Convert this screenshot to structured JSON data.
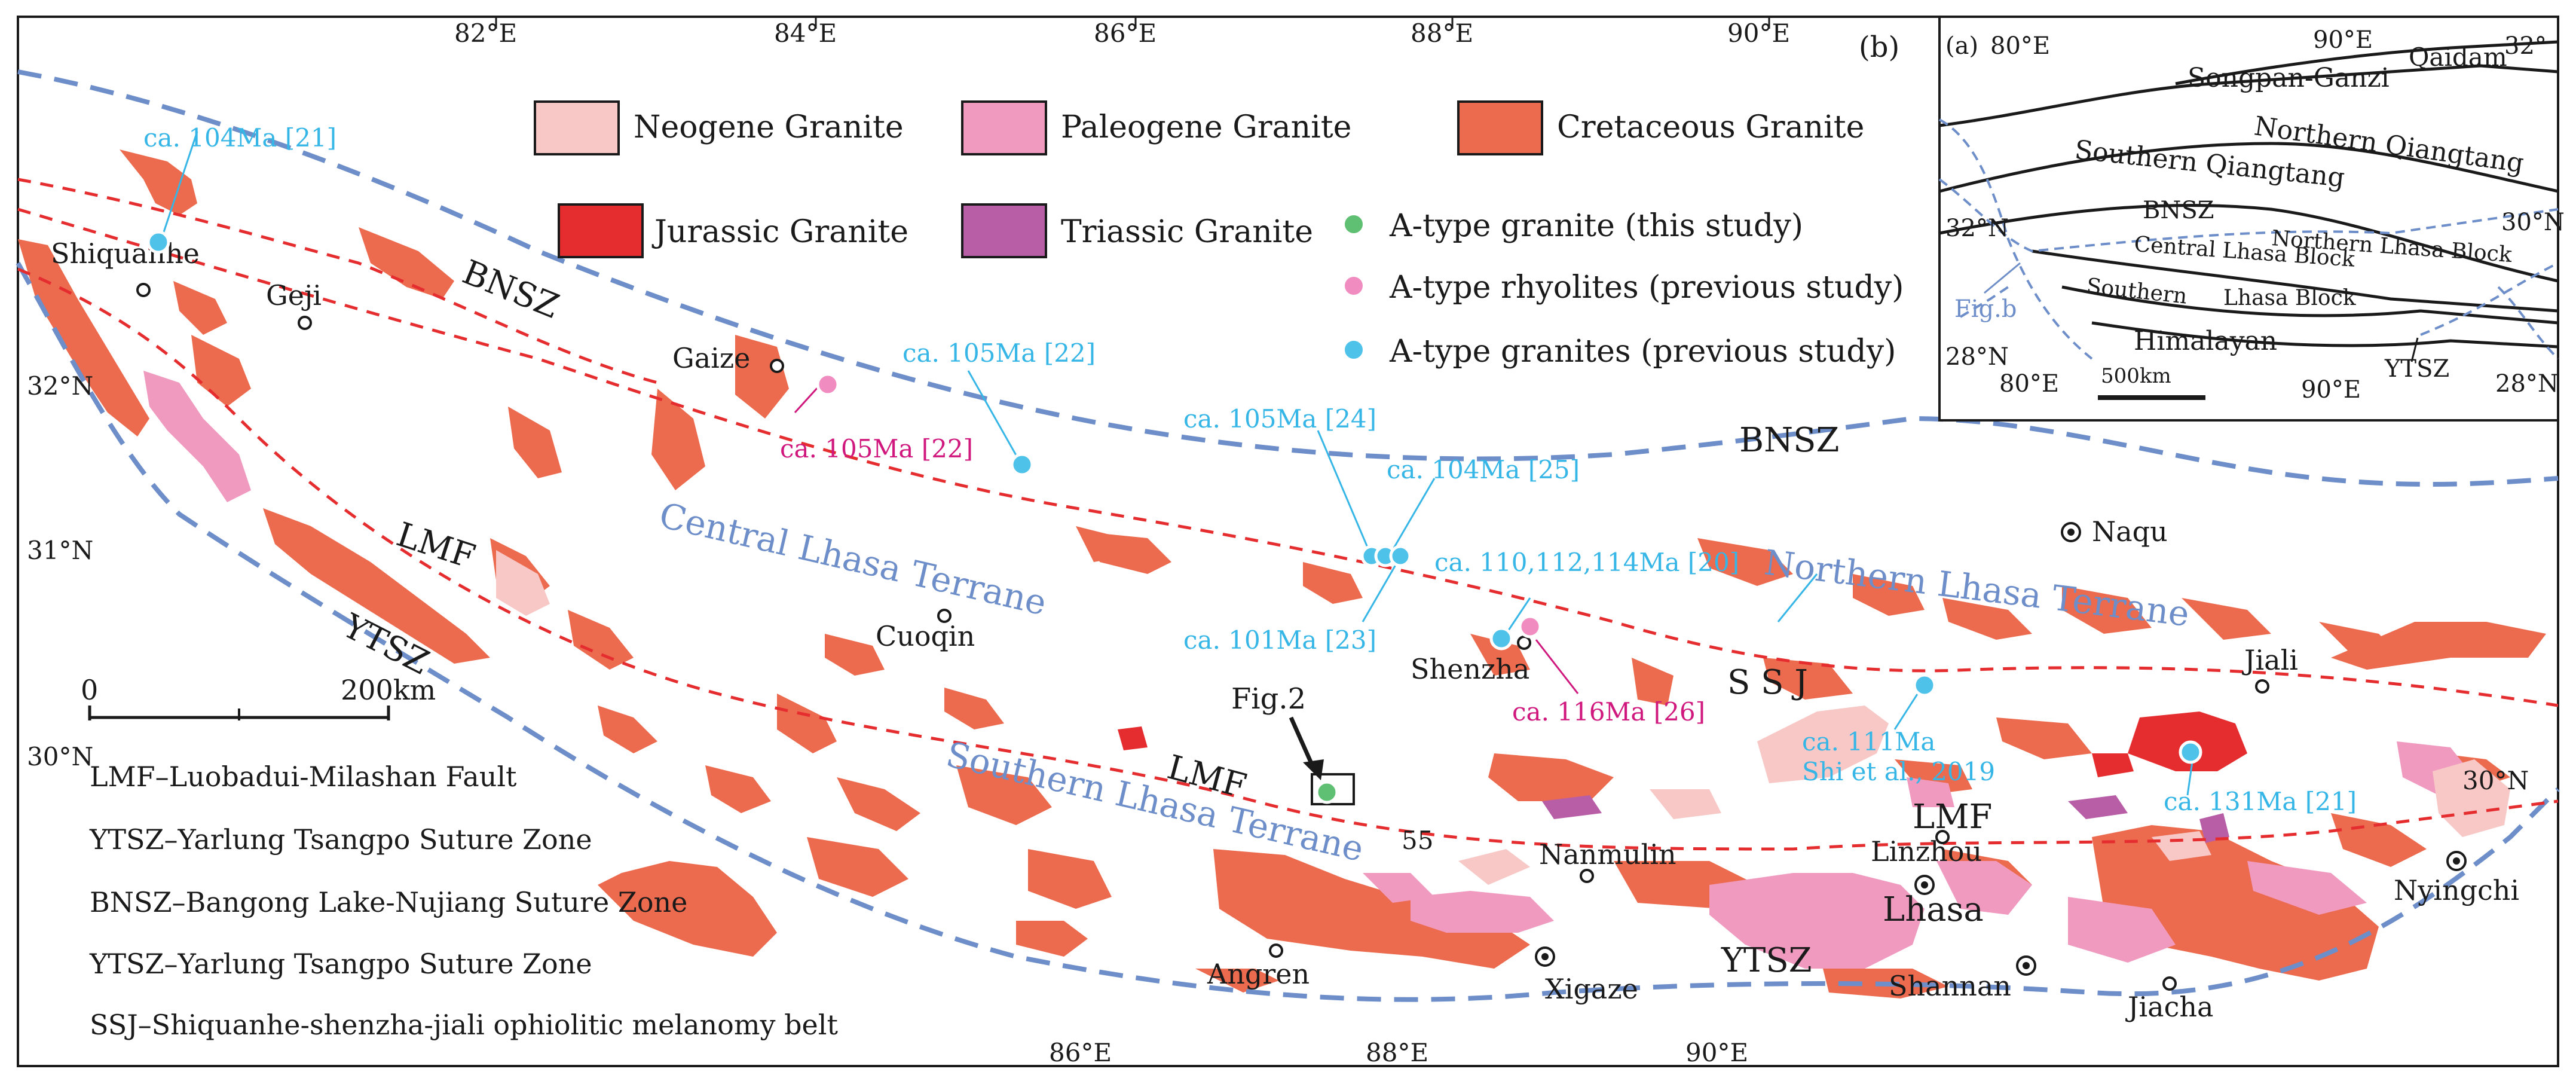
{
  "panel_labels": {
    "main": "(b)",
    "inset": "(a)"
  },
  "lat_lon_ticks": {
    "top_lon": [
      "82°E",
      "84°E",
      "86°E",
      "88°E",
      "90°E"
    ],
    "bottom_lon": [
      "86°E",
      "88°E",
      "90°E"
    ],
    "left_lat": [
      "32°N",
      "31°N",
      "30°N"
    ],
    "right_lat": [
      "30°N"
    ]
  },
  "legend": {
    "neogene": "Neogene Granite",
    "paleogene": "Paleogene Granite",
    "cretaceous": "Cretaceous Granite",
    "jurassic": "Jurassic Granite",
    "triassic": "Triassic Granite",
    "a_type_granite_this": "A-type granite (this study)",
    "a_type_rhyolite_prev": "A-type rhyolites (previous study)",
    "a_type_granite_prev": "A-type granites (previous study)"
  },
  "colors": {
    "neogene": "#f8c8c6",
    "paleogene": "#f09ac0",
    "cretaceous": "#ec6a4e",
    "jurassic": "#e52d2f",
    "triassic": "#b85ea7",
    "suture_blue": "#6d8ec9",
    "fault_red": "#e52d2f",
    "marker_green": "#5fbf72",
    "marker_pink": "#f08cc0",
    "marker_blue": "#4fc2ea",
    "age_blue": "#35b6e6",
    "age_magenta": "#d0177d"
  },
  "places": {
    "shiquanhe": "Shiquanhe",
    "geji": "Geji",
    "gaize": "Gaize",
    "cuoqin": "Cuoqin",
    "shenzha": "Shenzha",
    "naqu": "Naqu",
    "jiali": "Jiali",
    "nanmulin": "Nanmulin",
    "linzhou": "Linzhou",
    "lhasa": "Lhasa",
    "nyingchi": "Nyingchi",
    "angren": "Angren",
    "xigaze": "Xigaze",
    "shannan": "Shannan",
    "jiacha": "Jiacha"
  },
  "structures": {
    "bnsz_1": "BNSZ",
    "bnsz_2": "BNSZ",
    "lmf_1": "LMF",
    "lmf_2": "LMF",
    "lmf_3": "LMF",
    "ytsz_1": "YTSZ",
    "ytsz_2": "YTSZ",
    "ssj": "S S J",
    "num_55": "55",
    "fig2": "Fig.2"
  },
  "terranes": {
    "central": "Central Lhasa Terrane",
    "northern": "Northern Lhasa Terrane",
    "southern": "Southern Lhasa Terrane"
  },
  "ages": {
    "a104_21": "ca. 104Ma [21]",
    "a105_22_blue": "ca. 105Ma [22]",
    "a105_22_mag": "ca. 105Ma [22]",
    "a105_24": "ca. 105Ma [24]",
    "a104_25": "ca. 104Ma [25]",
    "a101_23": "ca. 101Ma [23]",
    "a110_20": "ca. 110,112,114Ma [20]",
    "a116_26": "ca. 116Ma [26]",
    "a111_line1": "ca. 111Ma",
    "a111_line2": "Shi et al., 2019",
    "a131_21": "ca. 131Ma [21]"
  },
  "scale_bar": {
    "start": "0",
    "end": "200km"
  },
  "abbreviations": [
    "LMF–Luobadui-Milashan Fault",
    "YTSZ–Yarlung Tsangpo Suture Zone",
    "BNSZ–Bangong Lake-Nujiang Suture Zone",
    "YTSZ–Yarlung Tsangpo Suture Zone",
    "SSJ–Shiquanhe-shenzha-jiali ophiolitic melanomy belt"
  ],
  "inset": {
    "top_lon_1": "80°E",
    "top_lon_2": "90°E",
    "top_lat": "32°",
    "bottom_lon_1": "80°E",
    "bottom_lon_2": "90°E",
    "lat_left_32": "32°N",
    "lat_left_28": "28°N",
    "lat_right_30": "30°N",
    "lat_right_28": "28°N",
    "qaidam": "Qaidam",
    "songpan": "Songpan-Ganzi",
    "n_qiangtang": "Northern Qiangtang",
    "s_qiangtang": "Southern Qiangtang",
    "bnsz": "BNSZ",
    "n_lhasa": "Northern Lhasa Block",
    "c_lhasa": "Central Lhasa Block",
    "s_lhasa_1": "Southern",
    "s_lhasa_2": "Lhasa Block",
    "himalayan": "Himalayan",
    "ytsz": "YTSZ",
    "figb": "Fig.b",
    "scale": "500km"
  }
}
